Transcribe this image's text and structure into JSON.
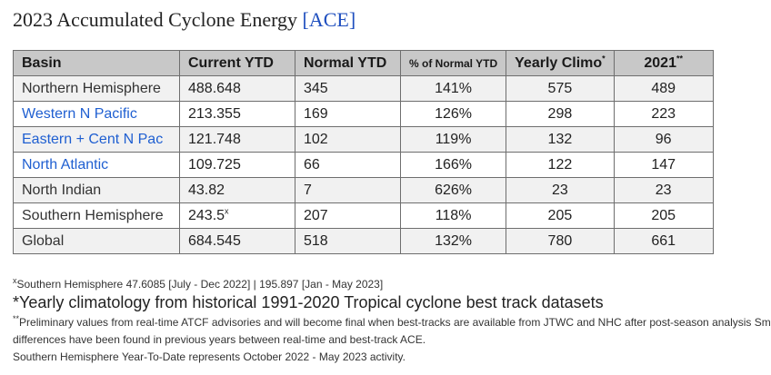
{
  "title": {
    "text": "2023 Accumulated Cyclone Energy ",
    "link": "[ACE]"
  },
  "table": {
    "headers": {
      "basin": "Basin",
      "current": "Current YTD",
      "normal": "Normal YTD",
      "pct": "% of Normal YTD",
      "climo": "Yearly Climo",
      "climo_mark": "*",
      "year": "2021",
      "year_mark": "**"
    },
    "rows": [
      {
        "basin": "Northern Hemisphere",
        "current": "488.648",
        "current_mark": "",
        "normal": "345",
        "pct": "141%",
        "climo": "575",
        "year": "489"
      },
      {
        "basin": "Western N Pacific",
        "current": "213.355",
        "current_mark": "",
        "normal": "169",
        "pct": "126%",
        "climo": "298",
        "year": "223"
      },
      {
        "basin": "Eastern + Cent N Pac",
        "current": "121.748",
        "current_mark": "",
        "normal": "102",
        "pct": "119%",
        "climo": "132",
        "year": "96"
      },
      {
        "basin": "North Atlantic",
        "current": "109.725",
        "current_mark": "",
        "normal": "66",
        "pct": "166%",
        "climo": "122",
        "year": "147"
      },
      {
        "basin": "North Indian",
        "current": "43.82",
        "current_mark": "",
        "normal": "7",
        "pct": "626%",
        "climo": "23",
        "year": "23"
      },
      {
        "basin": "Southern Hemisphere",
        "current": "243.5",
        "current_mark": "x",
        "normal": "207",
        "pct": "118%",
        "climo": "205",
        "year": "205"
      },
      {
        "basin": "Global",
        "current": "684.545",
        "current_mark": "",
        "normal": "518",
        "pct": "132%",
        "climo": "780",
        "year": "661"
      }
    ]
  },
  "notes": {
    "n1_mark": "x",
    "n1": "Southern Hemisphere 47.6085 [July - Dec 2022] | 195.897 [Jan - May 2023]",
    "n2": "*Yearly climatology from historical 1991-2020 Tropical cyclone best track datasets",
    "n3_mark": "**",
    "n3": "Preliminary values from real-time ATCF advisories and will become final when best-tracks are available from JTWC and NHC after post-season analysis Small",
    "n4": "differences have been found in previous years between real-time and best-track ACE.",
    "n5": "Southern Hemisphere Year-To-Date represents October 2022 - May 2023 activity."
  },
  "colors": {
    "link": "#1f5fd1",
    "header_bg": "#c8c8c8",
    "row_alt_bg": "#f1f1f1"
  }
}
